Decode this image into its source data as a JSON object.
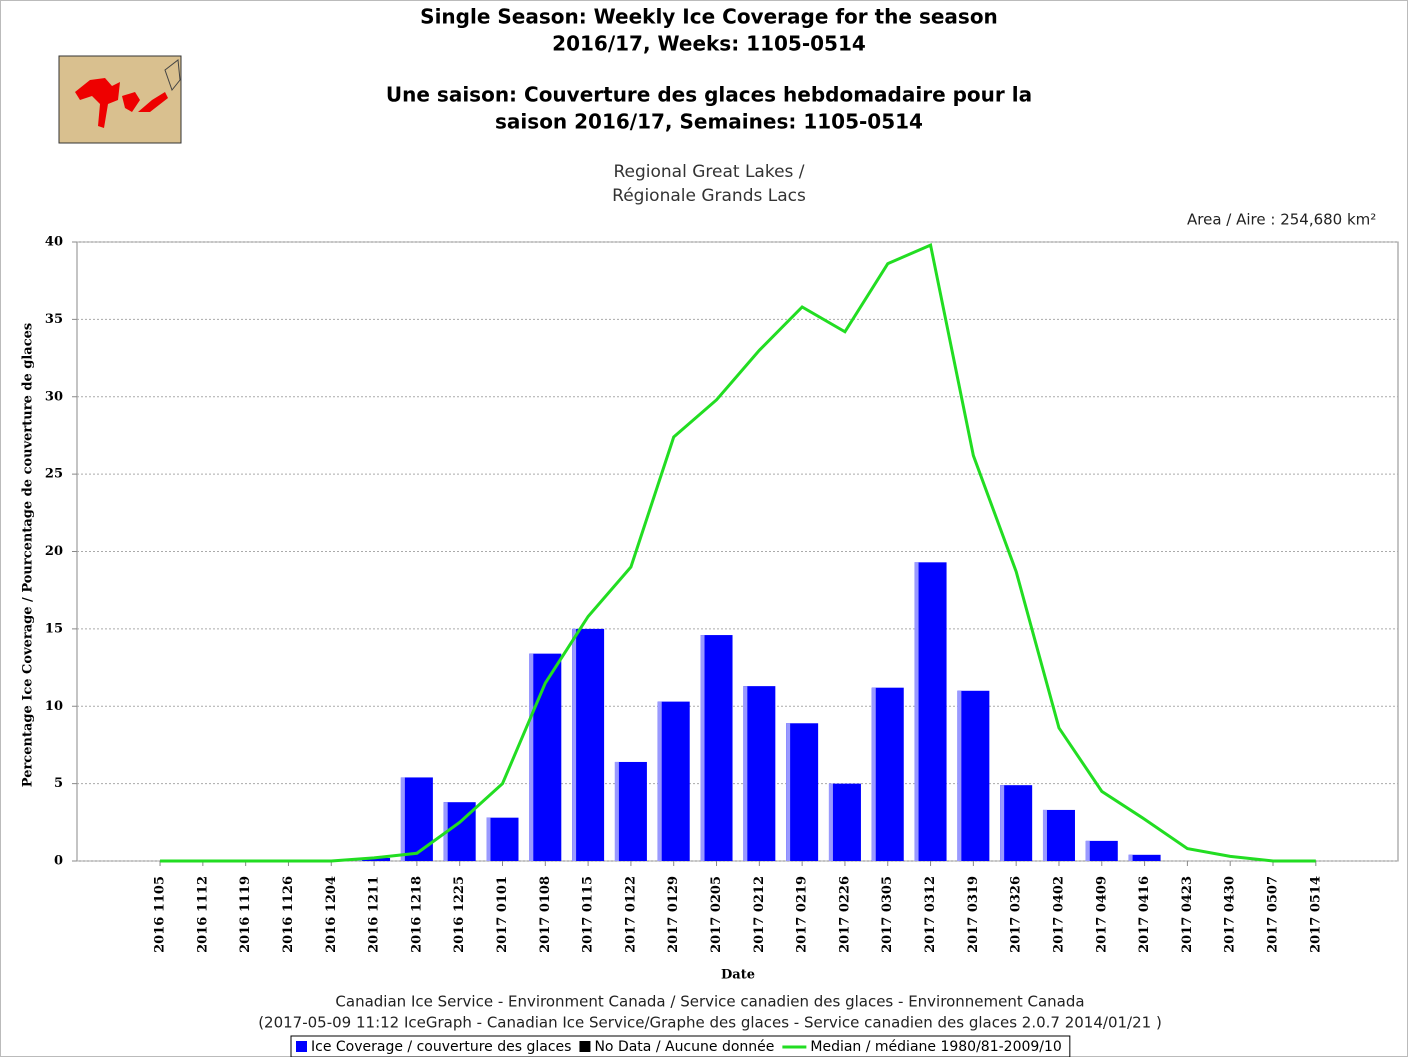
{
  "chart_data": {
    "type": "bar",
    "title": [
      "Single Season: Weekly Ice Coverage for the season",
      "2016/17, Weeks: 1105-0514",
      "Une saison: Couverture des glaces hebdomadaire pour la",
      "saison 2016/17, Semaines: 1105-0514"
    ],
    "subtitle": [
      "Regional Great Lakes /",
      "Régionale Grands Lacs"
    ],
    "area_label": "Area / Aire : 254,680 km²",
    "y_label": "Percentage Ice Coverage / Pourcentage de couverture de glaces",
    "x_label": "Date",
    "footer": [
      "Canadian Ice Service - Environment Canada / Service canadien des glaces - Environnement Canada",
      "(2017-05-09 11:12 IceGraph - Canadian Ice Service/Graphe des glaces - Service canadien des glaces 2.0.7 2014/01/21 )"
    ],
    "categories": [
      "2016 1105",
      "2016 1112",
      "2016 1119",
      "2016 1126",
      "2016 1204",
      "2016 1211",
      "2016 1218",
      "2016 1225",
      "2017 0101",
      "2017 0108",
      "2017 0115",
      "2017 0122",
      "2017 0129",
      "2017 0205",
      "2017 0212",
      "2017 0219",
      "2017 0226",
      "2017 0305",
      "2017 0312",
      "2017 0319",
      "2017 0326",
      "2017 0402",
      "2017 0409",
      "2017 0416",
      "2017 0423",
      "2017 0430",
      "2017 0507",
      "2017 0514"
    ],
    "series": [
      {
        "name": "Ice Coverage / couverture des glaces",
        "type": "bar",
        "color": "#0000ff",
        "values": [
          0,
          0,
          0,
          0,
          0,
          0.2,
          5.4,
          3.8,
          2.8,
          13.4,
          15,
          6.4,
          10.3,
          14.6,
          11.3,
          8.9,
          5,
          11.2,
          19.3,
          11,
          4.9,
          3.3,
          1.3,
          0.4,
          0,
          0,
          0,
          0
        ]
      },
      {
        "name": "Median / médiane 1980/81-2009/10",
        "type": "line",
        "color": "#22dd22",
        "values": [
          0,
          0,
          0,
          0,
          0,
          0.2,
          0.5,
          2.5,
          5,
          11.5,
          15.8,
          19,
          27.4,
          29.8,
          33,
          35.8,
          34.2,
          38.6,
          39.8,
          26.2,
          18.7,
          8.6,
          4.5,
          2.7,
          0.8,
          0.3,
          0,
          0
        ]
      }
    ],
    "no_data_legend": {
      "name": "No Data / Aucune donnée",
      "color": "#000000"
    },
    "ylim": [
      0,
      40
    ],
    "yticks": [
      0,
      5,
      10,
      15,
      20,
      25,
      30,
      35,
      40
    ],
    "grid": true
  }
}
